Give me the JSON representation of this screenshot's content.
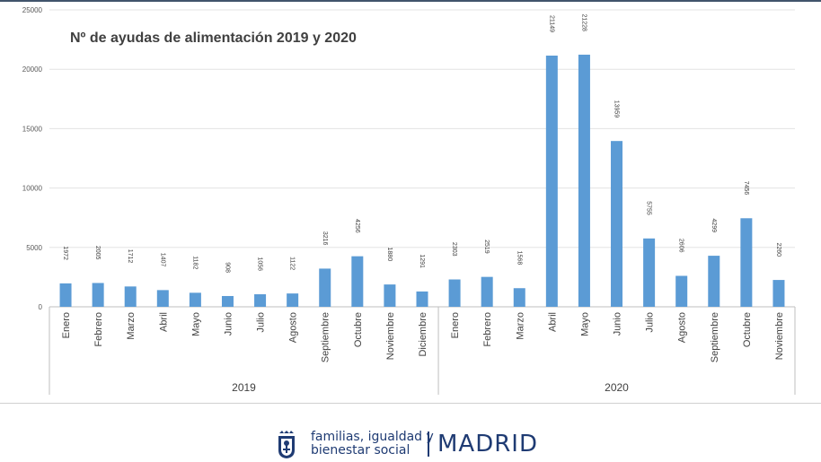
{
  "chart_data": {
    "type": "bar",
    "title": "Nº de ayudas de alimentación 2019 y 2020",
    "ylim": [
      0,
      25000
    ],
    "yticks": [
      0,
      5000,
      10000,
      15000,
      20000,
      25000
    ],
    "grid": true,
    "color": "#5b9bd5",
    "groups": [
      {
        "name": "2019",
        "categories": [
          "Enero",
          "Febrero",
          "Marzo",
          "Abril",
          "Mayo",
          "Junio",
          "Julio",
          "Agosto",
          "Septiembre",
          "Octubre",
          "Noviembre",
          "Diciembre"
        ],
        "values": [
          1972,
          2005,
          1712,
          1407,
          1182,
          908,
          1056,
          1122,
          3216,
          4256,
          1880,
          1291
        ]
      },
      {
        "name": "2020",
        "categories": [
          "Enero",
          "Febrero",
          "Marzo",
          "Abril",
          "Mayo",
          "Junio",
          "Julio",
          "Agosto",
          "Septiembre",
          "Octubre",
          "Noviembre"
        ],
        "values": [
          2303,
          2519,
          1568,
          21149,
          21228,
          13959,
          5755,
          2606,
          4299,
          7456,
          2260
        ]
      }
    ]
  },
  "footer": {
    "department_line1": "familias, igualdad y",
    "department_line2": "bienestar social",
    "city": "MADRID",
    "logo_icon": "madrid-coat-of-arms-icon",
    "brand_color": "#1f3b73"
  }
}
